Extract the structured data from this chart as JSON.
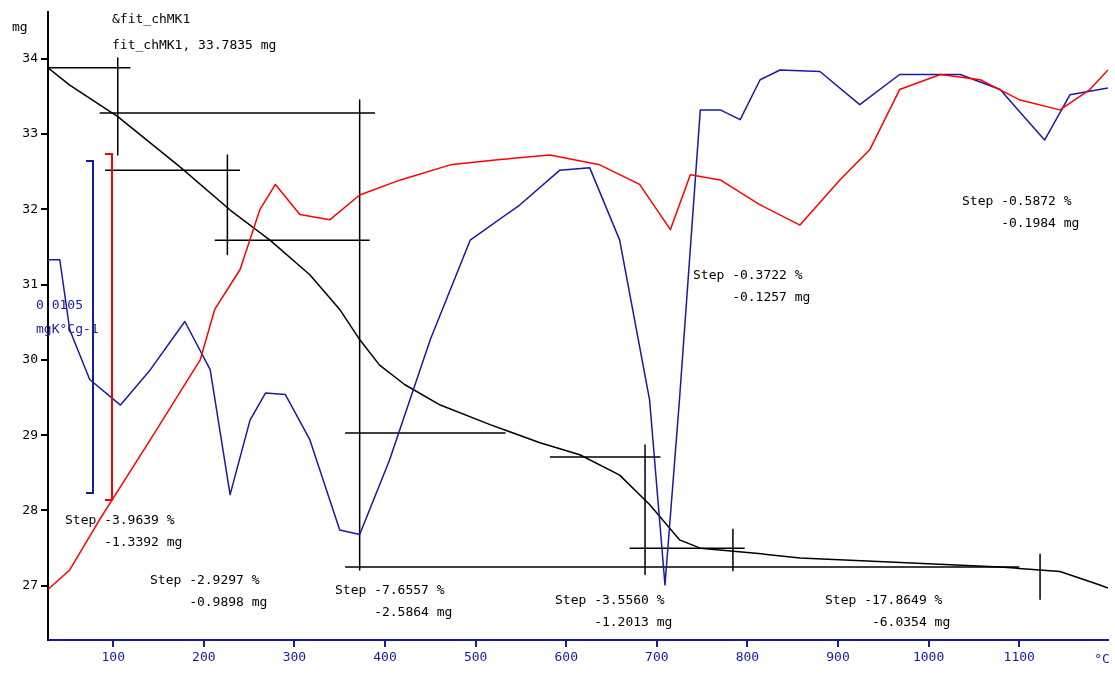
{
  "chart_data": {
    "type": "line",
    "ylabel": "mg",
    "xlabel": "°C",
    "xlim": [
      28,
      1198
    ],
    "xticks": [
      100,
      200,
      300,
      400,
      500,
      600,
      700,
      800,
      900,
      1000,
      1100
    ],
    "ylim": [
      26.28,
      34.62
    ],
    "yticks": [
      27,
      28,
      29,
      30,
      31,
      32,
      33,
      34
    ],
    "grid": false,
    "legend": false,
    "marker": "none",
    "line_style": "solid",
    "annotations": [
      "&fit_chMK1",
      "fit_chMK1, 33.7835 mg",
      "0.0105",
      "mgK°Cg-1",
      "Step -3.9639 %\n     -1.3392 mg",
      "Step -2.9297 %\n     -0.9898 mg",
      "Step -7.6557 %\n     -2.5864 mg",
      "Step -3.5560 %\n     -1.2013 mg",
      "Step -17.8649 %\n      -6.0354 mg",
      "Step -0.3722 %\n     -0.1257 mg",
      "Step -0.5872 %\n     -0.1984 mg"
    ],
    "series": [
      {
        "color": "#ff0000",
        "x": [
          28,
          52,
          85,
          141,
          196,
          212,
          240,
          262,
          279,
          306,
          339,
          372,
          417,
          472,
          527,
          582,
          637,
          681,
          715,
          737,
          770,
          814,
          858,
          902,
          935,
          968,
          1013,
          1057,
          1101,
          1145,
          1178,
          1198
        ],
        "values": [
          26.95,
          27.21,
          27.88,
          28.94,
          30.0,
          30.67,
          31.2,
          32.0,
          32.33,
          31.93,
          31.86,
          32.19,
          32.39,
          32.59,
          32.66,
          32.72,
          32.59,
          32.33,
          31.73,
          32.46,
          32.39,
          32.06,
          31.79,
          32.39,
          32.79,
          33.59,
          33.79,
          33.72,
          33.45,
          33.32,
          33.59,
          33.85
        ]
      },
      {
        "color": "#1a1aa0",
        "x": [
          28,
          41,
          52,
          74,
          108,
          141,
          179,
          207,
          229,
          251,
          268,
          290,
          317,
          350,
          372,
          405,
          450,
          494,
          549,
          593,
          626,
          659,
          692,
          709,
          725,
          748,
          770,
          792,
          814,
          836,
          880,
          924,
          968,
          1035,
          1079,
          1128,
          1156,
          1198
        ],
        "values": [
          31.33,
          31.33,
          30.4,
          29.74,
          29.4,
          29.87,
          30.51,
          29.87,
          28.21,
          29.2,
          29.56,
          29.54,
          28.94,
          27.74,
          27.68,
          28.67,
          30.27,
          31.59,
          32.06,
          32.52,
          32.55,
          31.59,
          29.47,
          27.01,
          29.47,
          33.32,
          33.32,
          33.19,
          33.72,
          33.85,
          33.83,
          33.39,
          33.79,
          33.79,
          33.59,
          32.92,
          33.52,
          33.61
        ]
      },
      {
        "color": "#000000",
        "x": [
          28,
          52,
          105,
          174,
          229,
          273,
          317,
          350,
          372,
          394,
          422,
          461,
          516,
          571,
          615,
          659,
          692,
          725,
          748,
          803,
          858,
          969,
          1079,
          1145,
          1189,
          1198
        ],
        "values": [
          33.88,
          33.65,
          33.23,
          32.56,
          31.99,
          31.59,
          31.13,
          30.67,
          30.27,
          29.93,
          29.67,
          29.4,
          29.14,
          28.9,
          28.74,
          28.47,
          28.08,
          27.61,
          27.5,
          27.44,
          27.37,
          27.31,
          27.25,
          27.19,
          27.01,
          26.97
        ]
      },
      {
        "color": "#000000",
        "x": [
          28,
          119
        ],
        "values": [
          33.88,
          33.88
        ]
      },
      {
        "color": "#000000",
        "x": [
          85,
          389
        ],
        "values": [
          33.28,
          33.28
        ]
      },
      {
        "color": "#000000",
        "x": [
          91,
          240
        ],
        "values": [
          32.52,
          32.52
        ]
      },
      {
        "color": "#000000",
        "x": [
          212,
          383
        ],
        "values": [
          31.59,
          31.59
        ]
      },
      {
        "color": "#000000",
        "x": [
          356,
          533
        ],
        "values": [
          29.03,
          29.03
        ]
      },
      {
        "color": "#000000",
        "x": [
          582,
          704
        ],
        "values": [
          28.71,
          28.71
        ]
      },
      {
        "color": "#000000",
        "x": [
          670,
          797
        ],
        "values": [
          27.5,
          27.5
        ]
      },
      {
        "color": "#000000",
        "x": [
          356,
          1100
        ],
        "values": [
          27.25,
          27.25
        ]
      },
      {
        "color": "#000000",
        "x": [
          105,
          105
        ],
        "values": [
          34.01,
          32.72
        ]
      },
      {
        "color": "#000000",
        "x": [
          226,
          226
        ],
        "values": [
          32.72,
          31.4
        ]
      },
      {
        "color": "#000000",
        "x": [
          372,
          372
        ],
        "values": [
          33.45,
          27.21
        ]
      },
      {
        "color": "#000000",
        "x": [
          687,
          687
        ],
        "values": [
          28.87,
          27.15
        ]
      },
      {
        "color": "#000000",
        "x": [
          784,
          784
        ],
        "values": [
          27.75,
          27.2
        ]
      },
      {
        "color": "#000000",
        "x": [
          1123,
          1123
        ],
        "values": [
          27.42,
          26.82
        ]
      }
    ]
  }
}
